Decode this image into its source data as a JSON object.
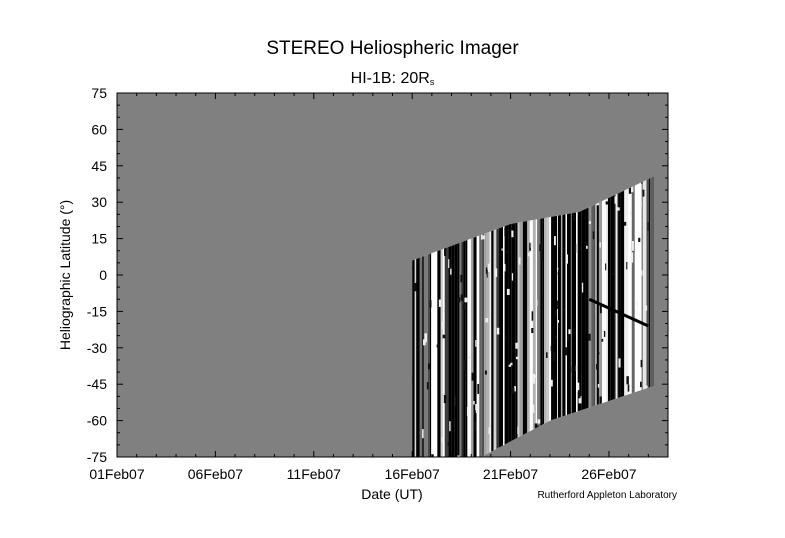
{
  "title": "STEREO Heliospheric Imager",
  "subtitle_main": "HI-1B: 20R",
  "subtitle_sub": "s",
  "credit": "Rutherford Appleton Laboratory",
  "chart_data": {
    "type": "heatmap",
    "title": "STEREO Heliospheric Imager",
    "subtitle": "HI-1B: 20Rs",
    "xlabel": "Date (UT)",
    "ylabel": "Heliographic Latitude (°)",
    "x_tick_labels": [
      "01Feb07",
      "06Feb07",
      "11Feb07",
      "16Feb07",
      "21Feb07",
      "26Feb07"
    ],
    "x_tick_days": [
      0,
      5,
      10,
      15,
      20,
      25
    ],
    "x_range_days": [
      0,
      28
    ],
    "x_start_date": "2007-02-01",
    "y_tick_labels": [
      "75",
      "60",
      "45",
      "30",
      "15",
      "0",
      "-15",
      "-30",
      "-45",
      "-60",
      "-75"
    ],
    "ylim": [
      -75,
      75
    ],
    "background_color": "#808080",
    "colormap": "grayscale",
    "data_coverage": {
      "start": "2007-02-15",
      "end": "2007-02-28",
      "latitude_top": [
        [
          15.0,
          6
        ],
        [
          20.0,
          21
        ],
        [
          23.5,
          26
        ],
        [
          27.9,
          43
        ]
      ],
      "latitude_bottom": [
        [
          15.0,
          -75
        ],
        [
          18.5,
          -75
        ],
        [
          22.0,
          -60
        ],
        [
          27.9,
          -44
        ]
      ]
    },
    "features": [
      {
        "type": "dark diagonal track",
        "from_date": "2007-02-25",
        "from_lat": -10,
        "to_date": "2007-02-28",
        "to_lat": -21
      }
    ]
  }
}
